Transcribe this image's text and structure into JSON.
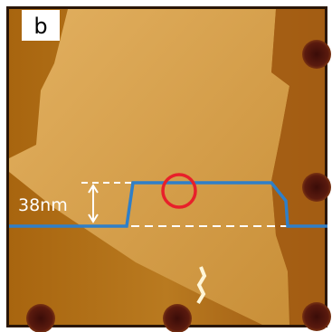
{
  "panel_label": "b",
  "annotation": "38nm"
}
